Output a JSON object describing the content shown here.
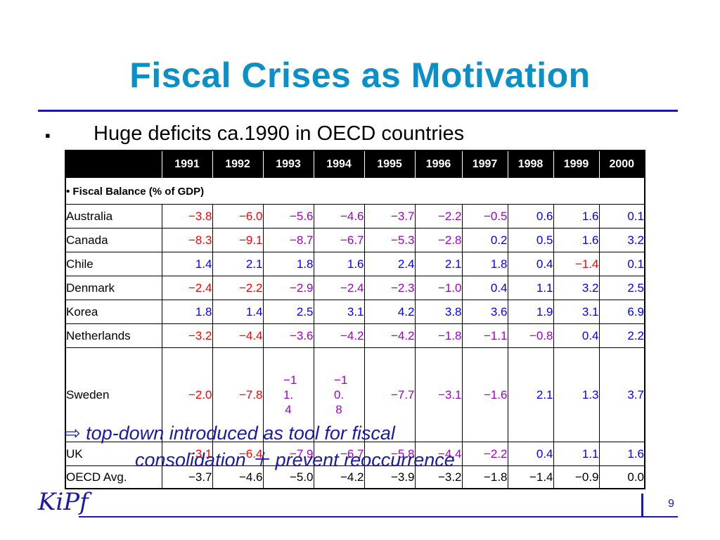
{
  "slide": {
    "title": "Fiscal Crises as Motivation",
    "bullet_marker": "▪",
    "bullet": "Huge deficits ca.1990 in OECD countries",
    "callout_arrow": "⇨",
    "callout_line1": "top-down introduced as tool for fiscal",
    "callout_line2": "consolidation ＋ prevent reoccurrence",
    "logo": "KiPf",
    "page_number": "9"
  },
  "table": {
    "years": [
      "1991",
      "1992",
      "1993",
      "1994",
      "1995",
      "1996",
      "1997",
      "1998",
      "1999",
      "2000"
    ],
    "section_label": "• Fiscal Balance (% of GDP)",
    "rows": [
      {
        "country": "Australia",
        "values": [
          "−3.8",
          "−6.0",
          "−5.6",
          "−4.6",
          "−3.7",
          "−2.2",
          "−0.5",
          "0.6",
          "1.6",
          "0.1"
        ]
      },
      {
        "country": "Canada",
        "values": [
          "−8.3",
          "−9.1",
          "−8.7",
          "−6.7",
          "−5.3",
          "−2.8",
          "0.2",
          "0.5",
          "1.6",
          "3.2"
        ]
      },
      {
        "country": "Chile",
        "values": [
          "1.4",
          "2.1",
          "1.8",
          "1.6",
          "2.4",
          "2.1",
          "1.8",
          "0.4",
          "−1.4",
          "0.1"
        ]
      },
      {
        "country": "Denmark",
        "values": [
          "−2.4",
          "−2.2",
          "−2.9",
          "−2.4",
          "−2.3",
          "−1.0",
          "0.4",
          "1.1",
          "3.2",
          "2.5"
        ]
      },
      {
        "country": "Korea",
        "values": [
          "1.8",
          "1.4",
          "2.5",
          "3.1",
          "4.2",
          "3.8",
          "3.6",
          "1.9",
          "3.1",
          "6.9"
        ]
      },
      {
        "country": "Netherlands",
        "values": [
          "−3.2",
          "−4.4",
          "−3.6",
          "−4.2",
          "−4.2",
          "−1.8",
          "−1.1",
          "−0.8",
          "0.4",
          "2.2"
        ]
      },
      {
        "country": "Sweden",
        "values": [
          "−2.0",
          "−7.8",
          "−11.4",
          "−10.8",
          "−7.7",
          "−3.1",
          "−1.6",
          "2.1",
          "1.3",
          "3.7"
        ]
      },
      {
        "country": "UK",
        "values": [
          "−3.1",
          "−6.4",
          "−7.9",
          "−6.7",
          "−5.8",
          "−4.4",
          "−2.2",
          "0.4",
          "1.1",
          "1.6"
        ]
      },
      {
        "country": "OECD Avg.",
        "values": [
          "−3.7",
          "−4.6",
          "−5.0",
          "−4.2",
          "−3.9",
          "−3.2",
          "−1.8",
          "−1.4",
          "−0.9",
          "0.0"
        ]
      }
    ]
  },
  "colors": {
    "title": "#0a8fc7",
    "rule": "#1a1aa8",
    "negative": "#ff0000",
    "negative_mid": "#a000cc",
    "positive": "#0000ff"
  }
}
